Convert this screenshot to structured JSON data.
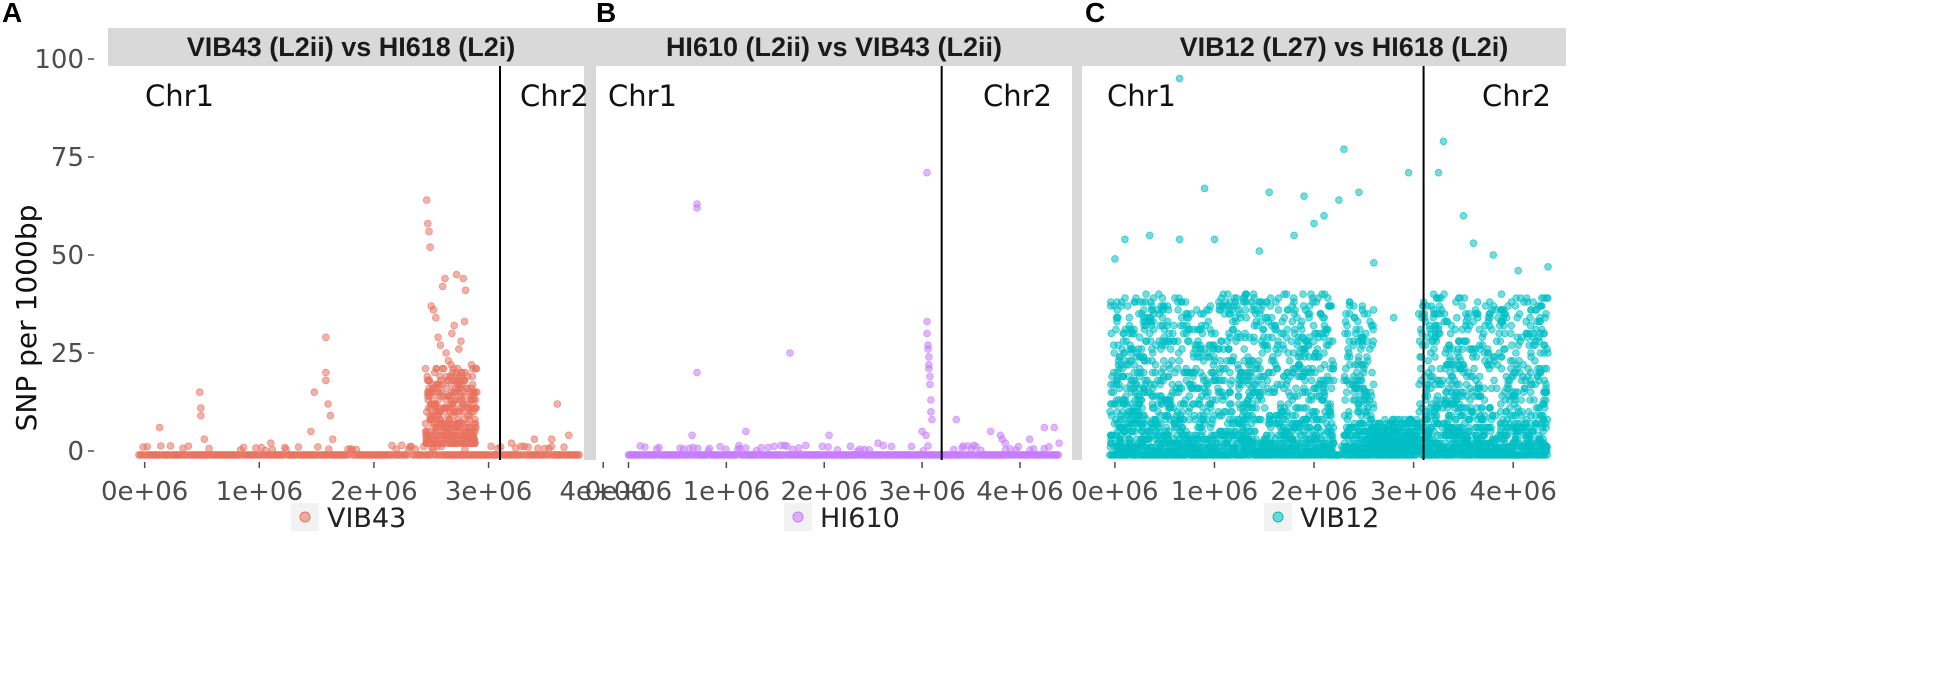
{
  "figure": {
    "ylabel": "SNP per 1000bp",
    "yticks": [
      0,
      25,
      50,
      75,
      100
    ],
    "xticks": [
      "0e+06",
      "1e+06",
      "2e+06",
      "3e+06",
      "4e+06"
    ],
    "chr_left": "Chr1",
    "chr_right": "Chr2",
    "background": "#ffffff",
    "strip_color": "#d9d9d9",
    "separator_color": "#d9d9d9"
  },
  "chart_data": [
    {
      "type": "scatter",
      "panel": "A",
      "title": "VIB43 (L2ii) vs HI618 (L2i)",
      "legend": "VIB43",
      "color": "#e8735f",
      "xlim": [
        -250000,
        3850000
      ],
      "ylim": [
        0,
        100
      ],
      "chromosome_boundary": 3100000,
      "baseline_range": [
        -50000,
        3800000
      ],
      "points": [
        [
          130000,
          6
        ],
        [
          480000,
          15
        ],
        [
          490000,
          11
        ],
        [
          490000,
          9
        ],
        [
          520000,
          3
        ],
        [
          1100000,
          2
        ],
        [
          1450000,
          5
        ],
        [
          1480000,
          15
        ],
        [
          1580000,
          29
        ],
        [
          1580000,
          20
        ],
        [
          1580000,
          18
        ],
        [
          1600000,
          12
        ],
        [
          1620000,
          9
        ],
        [
          1640000,
          3
        ],
        [
          2450000,
          21
        ],
        [
          2460000,
          64
        ],
        [
          2470000,
          58
        ],
        [
          2480000,
          56
        ],
        [
          2490000,
          52
        ],
        [
          2500000,
          37
        ],
        [
          2520000,
          36
        ],
        [
          2540000,
          34
        ],
        [
          2560000,
          29
        ],
        [
          2580000,
          27
        ],
        [
          2600000,
          42
        ],
        [
          2620000,
          44
        ],
        [
          2630000,
          25
        ],
        [
          2650000,
          23
        ],
        [
          2680000,
          30
        ],
        [
          2700000,
          32
        ],
        [
          2720000,
          45
        ],
        [
          2740000,
          26
        ],
        [
          2760000,
          28
        ],
        [
          2780000,
          44
        ],
        [
          2790000,
          33
        ],
        [
          2800000,
          41
        ],
        [
          2820000,
          19
        ],
        [
          2850000,
          15
        ],
        [
          2470000,
          18
        ],
        [
          2480000,
          15
        ],
        [
          2500000,
          12
        ],
        [
          2510000,
          9
        ],
        [
          2520000,
          7
        ],
        [
          2530000,
          20
        ],
        [
          2550000,
          16
        ],
        [
          2560000,
          13
        ],
        [
          2570000,
          10
        ],
        [
          2580000,
          8
        ],
        [
          2600000,
          17
        ],
        [
          2610000,
          14
        ],
        [
          2620000,
          11
        ],
        [
          2640000,
          9
        ],
        [
          2650000,
          6
        ],
        [
          2670000,
          19
        ],
        [
          2680000,
          15
        ],
        [
          2690000,
          12
        ],
        [
          2700000,
          10
        ],
        [
          2720000,
          7
        ],
        [
          2730000,
          21
        ],
        [
          2740000,
          16
        ],
        [
          2750000,
          13
        ],
        [
          2770000,
          11
        ],
        [
          2780000,
          8
        ],
        [
          2790000,
          18
        ],
        [
          2800000,
          14
        ],
        [
          2810000,
          12
        ],
        [
          2830000,
          9
        ],
        [
          2840000,
          6
        ],
        [
          2860000,
          13
        ],
        [
          2870000,
          10
        ],
        [
          2880000,
          7
        ],
        [
          3200000,
          2
        ],
        [
          3400000,
          3
        ],
        [
          3550000,
          3
        ],
        [
          3600000,
          12
        ],
        [
          3700000,
          4
        ]
      ],
      "dense_band": {
        "x_range": [
          2450000,
          2900000
        ],
        "y_range": [
          2,
          22
        ]
      }
    },
    {
      "type": "scatter",
      "panel": "B",
      "title": "HI610 (L2ii) vs VIB43 (L2ii)",
      "legend": "HI610",
      "color": "#c77cff",
      "xlim": [
        -250000,
        4450000
      ],
      "ylim": [
        0,
        100
      ],
      "chromosome_boundary": 3200000,
      "baseline_range": [
        0,
        4400000
      ],
      "points": [
        [
          700000,
          63
        ],
        [
          700000,
          62
        ],
        [
          700000,
          20
        ],
        [
          650000,
          4
        ],
        [
          1200000,
          5
        ],
        [
          1650000,
          25
        ],
        [
          2050000,
          4
        ],
        [
          2550000,
          2
        ],
        [
          3000000,
          5
        ],
        [
          3050000,
          71
        ],
        [
          3050000,
          33
        ],
        [
          3050000,
          30
        ],
        [
          3060000,
          27
        ],
        [
          3060000,
          26
        ],
        [
          3070000,
          24
        ],
        [
          3070000,
          22
        ],
        [
          3070000,
          21
        ],
        [
          3080000,
          19
        ],
        [
          3080000,
          17
        ],
        [
          3090000,
          13
        ],
        [
          3090000,
          10
        ],
        [
          3100000,
          8
        ],
        [
          3040000,
          4
        ],
        [
          3350000,
          8
        ],
        [
          3700000,
          5
        ],
        [
          3800000,
          4
        ],
        [
          3820000,
          3
        ],
        [
          3850000,
          2
        ],
        [
          4100000,
          3
        ],
        [
          4250000,
          6
        ],
        [
          4350000,
          6
        ],
        [
          4400000,
          2
        ]
      ]
    },
    {
      "type": "scatter",
      "panel": "C",
      "title": "VIB12 (L27) vs HI618 (L2i)",
      "legend": "VIB12",
      "color": "#00bfc4",
      "xlim": [
        -250000,
        4450000
      ],
      "ylim": [
        0,
        100
      ],
      "chromosome_boundary": 3100000,
      "baseline_range": [
        -50000,
        4350000
      ],
      "points": [
        [
          650000,
          95
        ],
        [
          2300000,
          77
        ],
        [
          3300000,
          79
        ],
        [
          3250000,
          71
        ],
        [
          2950000,
          71
        ],
        [
          900000,
          67
        ],
        [
          1550000,
          66
        ],
        [
          2450000,
          66
        ],
        [
          1900000,
          65
        ],
        [
          2250000,
          64
        ],
        [
          0,
          49
        ],
        [
          100000,
          54
        ],
        [
          350000,
          55
        ],
        [
          650000,
          54
        ],
        [
          1000000,
          54
        ],
        [
          2100000,
          60
        ],
        [
          3500000,
          60
        ],
        [
          3600000,
          53
        ],
        [
          4050000,
          46
        ],
        [
          4350000,
          47
        ],
        [
          1450000,
          51
        ],
        [
          1800000,
          55
        ],
        [
          2000000,
          58
        ],
        [
          2600000,
          48
        ],
        [
          3800000,
          50
        ],
        [
          1700000,
          40
        ],
        [
          2800000,
          34
        ],
        [
          3200000,
          40
        ],
        [
          4200000,
          38
        ]
      ],
      "dense_bands": [
        {
          "x_range": [
            -50000,
            2600000
          ],
          "y_range": [
            0,
            40
          ],
          "gap": [
            2200000,
            2300000
          ]
        },
        {
          "x_range": [
            3050000,
            4350000
          ],
          "y_range": [
            0,
            40
          ]
        },
        {
          "x_range": [
            2550000,
            3050000
          ],
          "y_range": [
            0,
            8
          ]
        }
      ]
    }
  ]
}
